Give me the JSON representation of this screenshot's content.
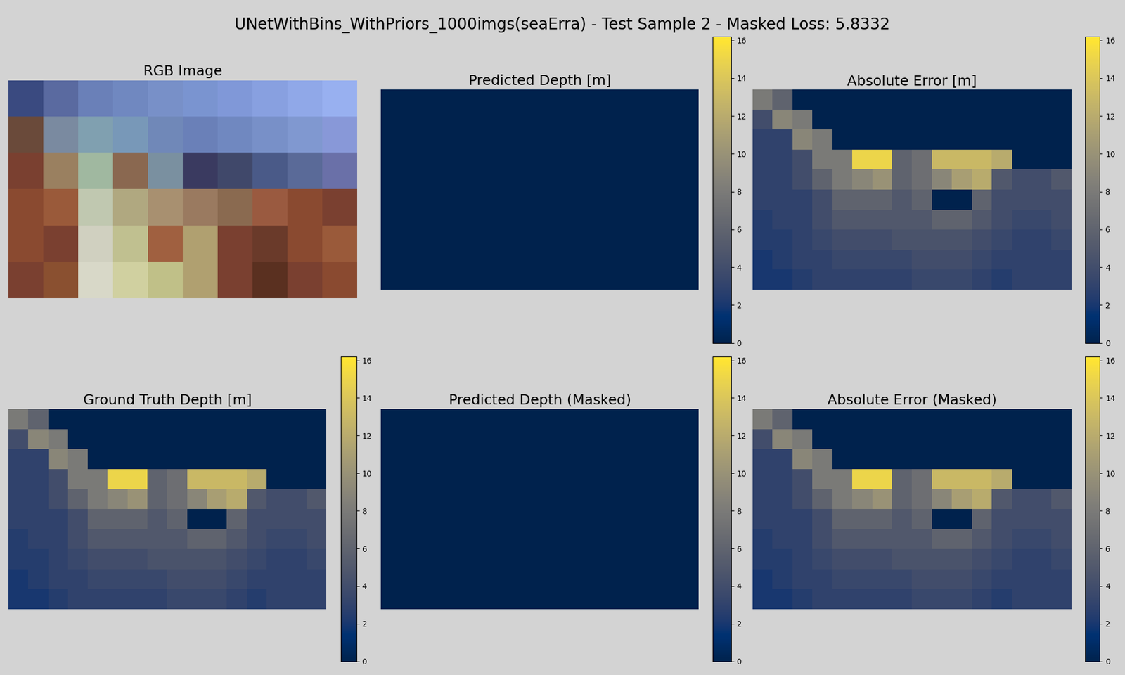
{
  "title": "UNetWithBins_WithPriors_1000imgs(seaErra) - Test Sample 2 - Masked Loss: 5.8332",
  "chart_data": [
    {
      "type": "image",
      "title": "RGB Image",
      "cells": [
        [
          "#3a4a80",
          "#5a6aa0",
          "#6a80b8",
          "#7088c0",
          "#7890c8",
          "#7a94d0",
          "#8098d8",
          "#88a0e0",
          "#90a8e8",
          "#98b0f0"
        ],
        [
          "#6a4a3a",
          "#7a8aa0",
          "#80a0b0",
          "#7898b8",
          "#7088b8",
          "#6a80b8",
          "#7088c0",
          "#7890c8",
          "#8098d0",
          "#8898d8"
        ],
        [
          "#7a4030",
          "#9a8060",
          "#a0b8a0",
          "#8a6850",
          "#7a90a0",
          "#3a3a60",
          "#40486a",
          "#4a5a88",
          "#5a6a98",
          "#6a70a8"
        ],
        [
          "#8a4a30",
          "#9a5a3a",
          "#c0c8b0",
          "#b0a880",
          "#a89070",
          "#9a7a60",
          "#8a6a50",
          "#9a5a40",
          "#8a4a30",
          "#7a4030"
        ],
        [
          "#8a4a30",
          "#7a4030",
          "#d0d0c0",
          "#c0c090",
          "#a06040",
          "#b0a070",
          "#7a4030",
          "#6a3a2a",
          "#8a4a30",
          "#9a5a3a"
        ],
        [
          "#7a4030",
          "#8a5030",
          "#d8d8c8",
          "#d0d0a0",
          "#c0c088",
          "#b0a070",
          "#7a4030",
          "#5a3020",
          "#7a4030",
          "#8a4a30"
        ]
      ]
    },
    {
      "type": "heatmap",
      "title": "Predicted Depth [m]",
      "color": "cividis",
      "colorbar_lim": [
        0,
        16.2
      ],
      "colorbar_ticks": [
        0,
        2,
        4,
        6,
        8,
        10,
        12,
        14,
        16
      ],
      "cells": [
        [
          0,
          0,
          0,
          0,
          0,
          0,
          0,
          0,
          0,
          0,
          0,
          0,
          0,
          0,
          0,
          0
        ],
        [
          0,
          0,
          0,
          0,
          0,
          0,
          0,
          0,
          0,
          0,
          0,
          0,
          0,
          0,
          0,
          0
        ],
        [
          0,
          0,
          0,
          0,
          0,
          0,
          0,
          0,
          0,
          0,
          0,
          0,
          0,
          0,
          0,
          0
        ],
        [
          0,
          0,
          0,
          0,
          0,
          0,
          0,
          0,
          0,
          0,
          0,
          0,
          0,
          0,
          0,
          0
        ],
        [
          0,
          0,
          0,
          0,
          0,
          0,
          0,
          0,
          0,
          0,
          0,
          0,
          0,
          0,
          0,
          0
        ],
        [
          0,
          0,
          0,
          0,
          0,
          0,
          0,
          0,
          0,
          0,
          0,
          0,
          0,
          0,
          0,
          0
        ],
        [
          0,
          0,
          0,
          0,
          0,
          0,
          0,
          0,
          0,
          0,
          0,
          0,
          0,
          0,
          0,
          0
        ],
        [
          0,
          0,
          0,
          0,
          0,
          0,
          0,
          0,
          0,
          0,
          0,
          0,
          0,
          0,
          0,
          0
        ],
        [
          0,
          0,
          0,
          0,
          0,
          0,
          0,
          0,
          0,
          0,
          0,
          0,
          0,
          0,
          0,
          0
        ],
        [
          0,
          0,
          0,
          0,
          0,
          0,
          0,
          0,
          0,
          0,
          0,
          0,
          0,
          0,
          0,
          0
        ]
      ]
    },
    {
      "type": "heatmap",
      "title": "Absolute Error [m]",
      "color": "cividis",
      "colorbar_lim": [
        0,
        16.2
      ],
      "colorbar_ticks": [
        0,
        2,
        4,
        6,
        8,
        10,
        12,
        14,
        16
      ],
      "cells": [
        [
          8,
          6,
          0,
          0,
          0,
          0,
          0,
          0,
          0,
          0,
          0,
          0,
          0,
          0,
          0,
          0
        ],
        [
          4,
          9,
          8,
          0,
          0,
          0,
          0,
          0,
          0,
          0,
          0,
          0,
          0,
          0,
          0,
          0
        ],
        [
          3,
          3,
          9,
          8,
          0,
          0,
          0,
          0,
          0,
          0,
          0,
          0,
          0,
          0,
          0,
          0
        ],
        [
          3,
          3,
          4,
          8,
          8,
          15,
          15,
          6,
          7,
          13,
          13,
          13,
          12,
          0,
          0,
          0
        ],
        [
          3,
          3,
          4,
          6,
          8,
          9,
          10,
          6,
          7,
          9,
          11,
          12,
          5,
          4,
          4,
          5
        ],
        [
          3,
          3,
          3,
          4,
          6,
          6,
          6,
          5,
          6,
          0,
          0,
          6,
          4,
          4,
          4,
          4
        ],
        [
          2.5,
          3,
          3,
          4,
          5,
          5,
          5,
          5,
          5,
          6,
          6,
          5,
          4,
          3.5,
          3.5,
          4
        ],
        [
          2.5,
          2.5,
          3,
          3.5,
          4,
          4,
          4,
          4.5,
          4.5,
          4.5,
          4.5,
          4,
          3.5,
          3,
          3,
          3.5
        ],
        [
          2,
          2.5,
          3,
          3,
          3.5,
          3.5,
          3.5,
          3.5,
          4,
          4,
          4,
          3.5,
          3,
          3,
          3,
          3
        ],
        [
          2,
          2,
          2.5,
          3,
          3,
          3,
          3,
          3,
          3.5,
          3.5,
          3.5,
          3,
          2.5,
          3,
          3,
          3
        ]
      ]
    },
    {
      "type": "heatmap",
      "title": "Ground Truth Depth [m]",
      "color": "cividis",
      "colorbar_lim": [
        0,
        16.2
      ],
      "colorbar_ticks": [
        0,
        2,
        4,
        6,
        8,
        10,
        12,
        14,
        16
      ],
      "cells": [
        [
          8,
          6,
          0,
          0,
          0,
          0,
          0,
          0,
          0,
          0,
          0,
          0,
          0,
          0,
          0,
          0
        ],
        [
          4,
          9,
          8,
          0,
          0,
          0,
          0,
          0,
          0,
          0,
          0,
          0,
          0,
          0,
          0,
          0
        ],
        [
          3,
          3,
          9,
          8,
          0,
          0,
          0,
          0,
          0,
          0,
          0,
          0,
          0,
          0,
          0,
          0
        ],
        [
          3,
          3,
          4,
          8,
          8,
          15,
          15,
          6,
          7,
          13,
          13,
          13,
          12,
          0,
          0,
          0
        ],
        [
          3,
          3,
          4,
          6,
          8,
          9,
          10,
          6,
          7,
          9,
          11,
          12,
          5,
          4,
          4,
          5
        ],
        [
          3,
          3,
          3,
          4,
          6,
          6,
          6,
          5,
          6,
          0,
          0,
          6,
          4,
          4,
          4,
          4
        ],
        [
          2.5,
          3,
          3,
          4,
          5,
          5,
          5,
          5,
          5,
          6,
          6,
          5,
          4,
          3.5,
          3.5,
          4
        ],
        [
          2.5,
          2.5,
          3,
          3.5,
          4,
          4,
          4,
          4.5,
          4.5,
          4.5,
          4.5,
          4,
          3.5,
          3,
          3,
          3.5
        ],
        [
          2,
          2.5,
          3,
          3,
          3.5,
          3.5,
          3.5,
          3.5,
          4,
          4,
          4,
          3.5,
          3,
          3,
          3,
          3
        ],
        [
          2,
          2,
          2.5,
          3,
          3,
          3,
          3,
          3,
          3.5,
          3.5,
          3.5,
          3,
          2.5,
          3,
          3,
          3
        ]
      ]
    },
    {
      "type": "heatmap",
      "title": "Predicted Depth (Masked)",
      "color": "cividis",
      "colorbar_lim": [
        0,
        16.2
      ],
      "colorbar_ticks": [
        0,
        2,
        4,
        6,
        8,
        10,
        12,
        14,
        16
      ],
      "cells": [
        [
          0,
          0,
          0,
          0,
          0,
          0,
          0,
          0,
          0,
          0,
          0,
          0,
          0,
          0,
          0,
          0
        ],
        [
          0,
          0,
          0,
          0,
          0,
          0,
          0,
          0,
          0,
          0,
          0,
          0,
          0,
          0,
          0,
          0
        ],
        [
          0,
          0,
          0,
          0,
          0,
          0,
          0,
          0,
          0,
          0,
          0,
          0,
          0,
          0,
          0,
          0
        ],
        [
          0,
          0,
          0,
          0,
          0,
          0,
          0,
          0,
          0,
          0,
          0,
          0,
          0,
          0,
          0,
          0
        ],
        [
          0,
          0,
          0,
          0,
          0,
          0,
          0,
          0,
          0,
          0,
          0,
          0,
          0,
          0,
          0,
          0
        ],
        [
          0,
          0,
          0,
          0,
          0,
          0,
          0,
          0,
          0,
          0,
          0,
          0,
          0,
          0,
          0,
          0
        ],
        [
          0,
          0,
          0,
          0,
          0,
          0,
          0,
          0,
          0,
          0,
          0,
          0,
          0,
          0,
          0,
          0
        ],
        [
          0,
          0,
          0,
          0,
          0,
          0,
          0,
          0,
          0,
          0,
          0,
          0,
          0,
          0,
          0,
          0
        ],
        [
          0,
          0,
          0,
          0,
          0,
          0,
          0,
          0,
          0,
          0,
          0,
          0,
          0,
          0,
          0,
          0
        ],
        [
          0,
          0,
          0,
          0,
          0,
          0,
          0,
          0,
          0,
          0,
          0,
          0,
          0,
          0,
          0,
          0
        ]
      ]
    },
    {
      "type": "heatmap",
      "title": "Absolute Error (Masked)",
      "color": "cividis",
      "colorbar_lim": [
        0,
        16.2
      ],
      "colorbar_ticks": [
        0,
        2,
        4,
        6,
        8,
        10,
        12,
        14,
        16
      ],
      "cells": [
        [
          8,
          6,
          0,
          0,
          0,
          0,
          0,
          0,
          0,
          0,
          0,
          0,
          0,
          0,
          0,
          0
        ],
        [
          4,
          9,
          8,
          0,
          0,
          0,
          0,
          0,
          0,
          0,
          0,
          0,
          0,
          0,
          0,
          0
        ],
        [
          3,
          3,
          9,
          8,
          0,
          0,
          0,
          0,
          0,
          0,
          0,
          0,
          0,
          0,
          0,
          0
        ],
        [
          3,
          3,
          4,
          8,
          8,
          15,
          15,
          6,
          7,
          13,
          13,
          13,
          12,
          0,
          0,
          0
        ],
        [
          3,
          3,
          4,
          6,
          8,
          9,
          10,
          6,
          7,
          9,
          11,
          12,
          5,
          4,
          4,
          5
        ],
        [
          3,
          3,
          3,
          4,
          6,
          6,
          6,
          5,
          6,
          0,
          0,
          6,
          4,
          4,
          4,
          4
        ],
        [
          2.5,
          3,
          3,
          4,
          5,
          5,
          5,
          5,
          5,
          6,
          6,
          5,
          4,
          3.5,
          3.5,
          4
        ],
        [
          2.5,
          2.5,
          3,
          3.5,
          4,
          4,
          4,
          4.5,
          4.5,
          4.5,
          4.5,
          4,
          3.5,
          3,
          3,
          3.5
        ],
        [
          2,
          2.5,
          3,
          3,
          3.5,
          3.5,
          3.5,
          3.5,
          4,
          4,
          4,
          3.5,
          3,
          3,
          3,
          3
        ],
        [
          2,
          2,
          2.5,
          3,
          3,
          3,
          3,
          3,
          3.5,
          3.5,
          3.5,
          3,
          2.5,
          3,
          3,
          3
        ]
      ]
    }
  ]
}
